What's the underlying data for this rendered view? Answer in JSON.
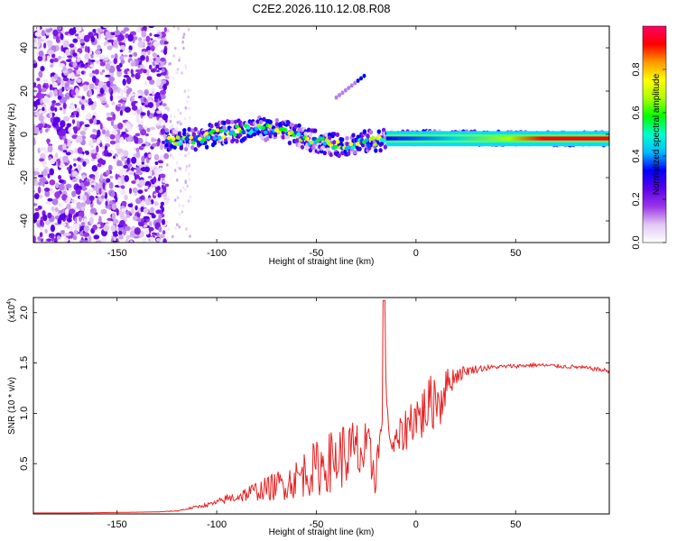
{
  "chart_data": [
    {
      "type": "heatmap",
      "title": "C2E2.2026.110.12.08.R08",
      "xlabel": "Height of straight line (km)",
      "ylabel": "Frequency (Hz)",
      "xlim": [
        -192,
        97
      ],
      "ylim": [
        -50,
        50
      ],
      "xticks": [
        -150,
        -100,
        -50,
        0,
        50
      ],
      "yticks": [
        -40,
        -20,
        0,
        20,
        40
      ],
      "colorbar": {
        "label": "Normalized spectral amplitude",
        "range": [
          0,
          1
        ],
        "ticks": [
          "0.0",
          "0.2",
          "0.4",
          "0.6",
          "0.8"
        ],
        "tick_values": [
          0,
          0.2,
          0.4,
          0.6,
          0.8
        ],
        "colors": [
          "#ffffff",
          "#e2c8f2",
          "#9b34e8",
          "#5a00ea",
          "#0000ff",
          "#00bbff",
          "#00ffcc",
          "#00ff00",
          "#aaff00",
          "#ffff00",
          "#ff9900",
          "#ff0000",
          "#ff0066"
        ]
      },
      "regions": [
        {
          "name": "noise",
          "x": [
            -192,
            -125
          ],
          "y": [
            -50,
            50
          ],
          "level": 0.12
        },
        {
          "name": "sparse-noise",
          "x": [
            -125,
            -113
          ],
          "y": [
            -50,
            50
          ],
          "level": 0.05
        },
        {
          "name": "signal-band",
          "points": [
            [
              -125,
              -3
            ],
            [
              -110,
              -2
            ],
            [
              -95,
              1
            ],
            [
              -80,
              3
            ],
            [
              -65,
              1
            ],
            [
              -52,
              -3
            ],
            [
              -40,
              -5
            ],
            [
              -30,
              -4
            ],
            [
              -22,
              -3
            ],
            [
              -15,
              -2
            ],
            [
              0,
              -1.5
            ],
            [
              20,
              -1.5
            ],
            [
              60,
              -2
            ],
            [
              97,
              -2
            ]
          ],
          "level_start": 0.3,
          "level_end": 0.9
        },
        {
          "name": "streak",
          "x": [
            -40,
            -26
          ],
          "y": [
            17,
            27
          ],
          "level": 0.45
        }
      ]
    },
    {
      "type": "line",
      "xlabel": "Height of straight line (km)",
      "ylabel": "SNR (10 * v/v)",
      "scale_label": "(x10",
      "scale_exp": "4",
      "xlim": [
        -192,
        97
      ],
      "ylim": [
        0,
        2.15
      ],
      "xticks": [
        -150,
        -100,
        -50,
        0,
        50
      ],
      "yticks": [
        0.5,
        1.0,
        1.5,
        2.0
      ],
      "ytick_labels": [
        "0.5",
        "1.0",
        "1.5",
        "2.0"
      ],
      "color": "#e82020",
      "series": [
        {
          "name": "SNR",
          "x": [
            -192,
            -170,
            -150,
            -130,
            -120,
            -115,
            -110,
            -105,
            -100,
            -95,
            -90,
            -85,
            -80,
            -75,
            -70,
            -65,
            -60,
            -55,
            -50,
            -45,
            -40,
            -35,
            -30,
            -25,
            -20,
            -17,
            -16,
            -15,
            -14,
            -12,
            -10,
            -8,
            -5,
            -2,
            0,
            2,
            5,
            8,
            10,
            12,
            14,
            16,
            20,
            25,
            30,
            35,
            40,
            50,
            60,
            70,
            80,
            90,
            97
          ],
          "y": [
            0.01,
            0.01,
            0.015,
            0.02,
            0.03,
            0.05,
            0.07,
            0.09,
            0.11,
            0.15,
            0.17,
            0.2,
            0.23,
            0.25,
            0.28,
            0.31,
            0.35,
            0.42,
            0.45,
            0.5,
            0.55,
            0.6,
            0.6,
            0.58,
            0.45,
            0.9,
            2.1,
            1.2,
            0.9,
            0.65,
            0.7,
            0.75,
            0.85,
            0.95,
            1.0,
            0.95,
            1.05,
            1.1,
            1.2,
            1.1,
            1.25,
            1.3,
            1.38,
            1.42,
            1.44,
            1.45,
            1.46,
            1.47,
            1.48,
            1.47,
            1.46,
            1.44,
            1.42
          ],
          "noise": [
            0,
            0,
            0,
            0,
            0.005,
            0.01,
            0.015,
            0.02,
            0.03,
            0.05,
            0.06,
            0.08,
            0.1,
            0.12,
            0.15,
            0.17,
            0.2,
            0.25,
            0.28,
            0.3,
            0.32,
            0.35,
            0.35,
            0.33,
            0.28,
            0.05,
            0,
            0.05,
            0.08,
            0.12,
            0.15,
            0.2,
            0.22,
            0.25,
            0.25,
            0.27,
            0.28,
            0.3,
            0.3,
            0.28,
            0.25,
            0.15,
            0.1,
            0.05,
            0.04,
            0.03,
            0.02,
            0.02,
            0.02,
            0.02,
            0.02,
            0.02,
            0.02
          ]
        }
      ]
    }
  ]
}
